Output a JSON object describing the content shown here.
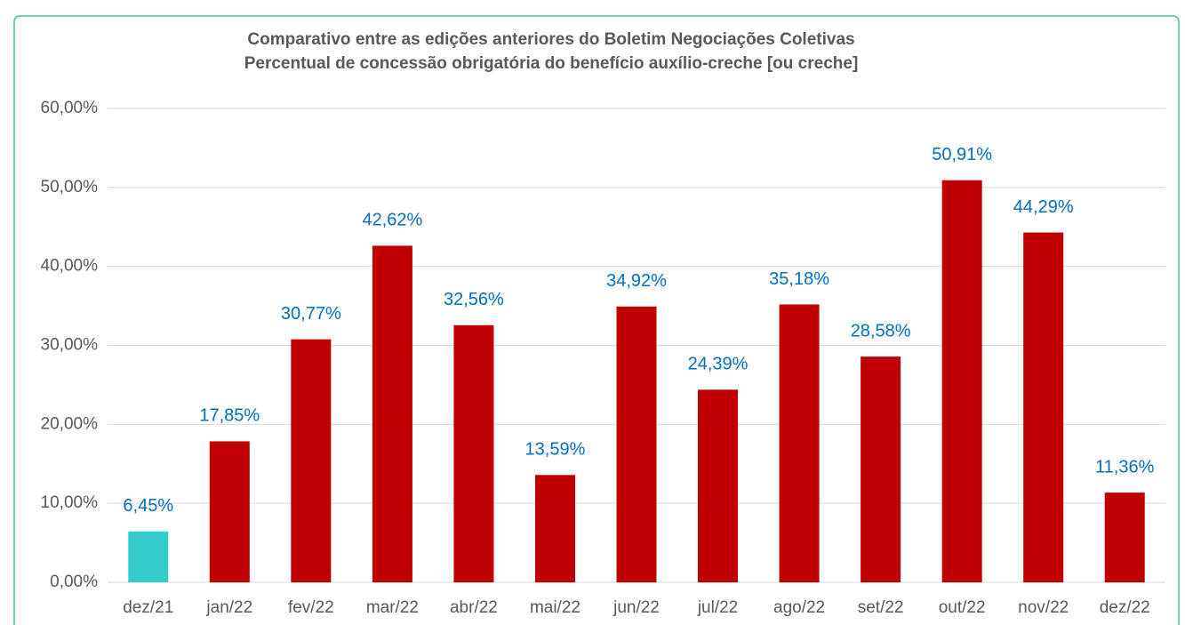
{
  "chart_data": {
    "type": "bar",
    "title": "Comparativo entre as edições anteriores do Boletim Negociações Coletivas",
    "subtitle": "Percentual de concessão obrigatória do benefício auxílio-creche [ou creche]",
    "categories": [
      "dez/21",
      "jan/22",
      "fev/22",
      "mar/22",
      "abr/22",
      "mai/22",
      "jun/22",
      "jul/22",
      "ago/22",
      "set/22",
      "out/22",
      "nov/22",
      "dez/22"
    ],
    "values": [
      6.45,
      17.85,
      30.77,
      42.62,
      32.56,
      13.59,
      34.92,
      24.39,
      35.18,
      28.58,
      50.91,
      44.29,
      11.36
    ],
    "value_labels": [
      "6,45%",
      "17,85%",
      "30,77%",
      "42,62%",
      "32,56%",
      "13,59%",
      "34,92%",
      "24,39%",
      "35,18%",
      "28,58%",
      "50,91%",
      "44,29%",
      "11,36%"
    ],
    "colors": [
      "#33cccc",
      "#c00000",
      "#c00000",
      "#c00000",
      "#c00000",
      "#c00000",
      "#c00000",
      "#c00000",
      "#c00000",
      "#c00000",
      "#c00000",
      "#c00000",
      "#c00000"
    ],
    "ylim": [
      0,
      60
    ],
    "yticks": [
      {
        "value": 0,
        "label": "0,00%"
      },
      {
        "value": 10,
        "label": "10,00%"
      },
      {
        "value": 20,
        "label": "20,00%"
      },
      {
        "value": 30,
        "label": "30,00%"
      },
      {
        "value": 40,
        "label": "40,00%"
      },
      {
        "value": 50,
        "label": "50,00%"
      },
      {
        "value": 60,
        "label": "60,00%"
      }
    ],
    "grid": true
  }
}
